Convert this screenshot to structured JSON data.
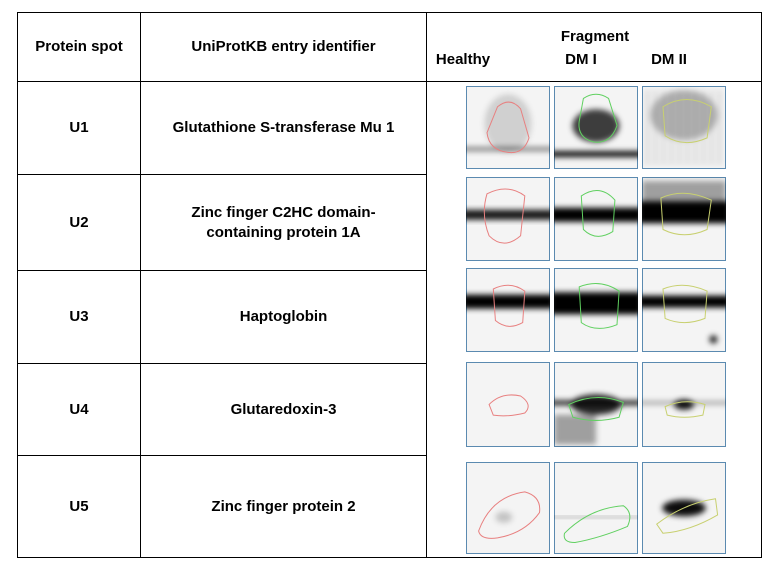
{
  "header": {
    "protein_spot": "Protein spot",
    "uniprot": "UniProtKB entry identifier",
    "fragment": "Fragment",
    "healthy": "Healthy",
    "dm1": "DM I",
    "dm2": "DM II"
  },
  "rows": [
    {
      "spot": "U1",
      "name": "Glutathione S-transferase Mu 1"
    },
    {
      "spot": "U2",
      "name": "Zinc finger C2HC domain-containing protein 1A"
    },
    {
      "spot": "U3",
      "name": "Haptoglobin"
    },
    {
      "spot": "U4",
      "name": "Glutaredoxin-3"
    },
    {
      "spot": "U5",
      "name": "Zinc finger protein 2"
    }
  ],
  "colors": {
    "healthy_outline": "#e88080",
    "dm1_outline": "#60d060",
    "dm2_outline": "#c8d070",
    "gel_border": "#5b8ab0"
  }
}
